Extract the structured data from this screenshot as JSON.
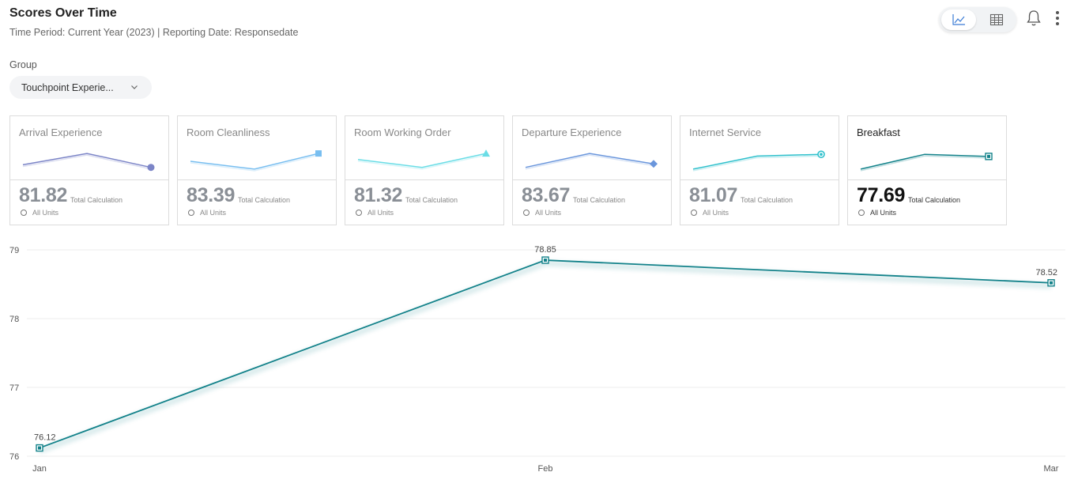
{
  "header": {
    "title": "Scores Over Time",
    "subtitle": "Time Period: Current Year (2023) | Reporting Date: Responsedate"
  },
  "view_toggle": {
    "active": "line-chart",
    "options": [
      "line-chart-icon",
      "table-grid-icon"
    ]
  },
  "group": {
    "label": "Group",
    "selected": "Touchpoint Experie..."
  },
  "colors": {
    "accent": "#13828a"
  },
  "cards": [
    {
      "name": "Arrival Experience",
      "value": "81.82",
      "calc": "Total Calculation",
      "units": "All Units",
      "color": "#7c85c7",
      "marker": "circle",
      "trend": [
        0.3,
        0.95,
        0.15
      ],
      "active": false
    },
    {
      "name": "Room Cleanliness",
      "value": "83.39",
      "calc": "Total Calculation",
      "units": "All Units",
      "color": "#78bef0",
      "marker": "square",
      "trend": [
        0.5,
        0.05,
        0.95
      ],
      "active": false
    },
    {
      "name": "Room Working Order",
      "value": "81.32",
      "calc": "Total Calculation",
      "units": "All Units",
      "color": "#6adde6",
      "marker": "triangle",
      "trend": [
        0.6,
        0.15,
        0.95
      ],
      "active": false
    },
    {
      "name": "Departure Experience",
      "value": "83.67",
      "calc": "Total Calculation",
      "units": "All Units",
      "color": "#6a96dc",
      "marker": "diamond",
      "trend": [
        0.15,
        0.95,
        0.35
      ],
      "active": false
    },
    {
      "name": "Internet Service",
      "value": "81.07",
      "calc": "Total Calculation",
      "units": "All Units",
      "color": "#2ec0cc",
      "marker": "target",
      "trend": [
        0.05,
        0.8,
        0.9
      ],
      "active": false
    },
    {
      "name": "Breakfast",
      "value": "77.69",
      "calc": "Total Calculation",
      "units": "All Units",
      "color": "#13828a",
      "marker": "boxed-square",
      "trend": [
        0.05,
        0.9,
        0.78
      ],
      "active": true
    }
  ],
  "chart_data": {
    "type": "line",
    "categories": [
      "Jan",
      "Feb",
      "Mar"
    ],
    "series": [
      {
        "values": [
          76.12,
          78.85,
          78.52
        ]
      }
    ],
    "data_labels": [
      "76.12",
      "78.85",
      "78.52"
    ],
    "yticks": [
      "76",
      "77",
      "78",
      "79"
    ],
    "ylim": [
      76,
      79
    ],
    "grid": true,
    "color": "#13828a"
  }
}
